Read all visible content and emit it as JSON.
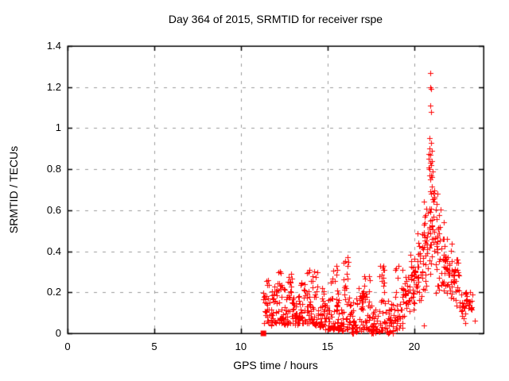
{
  "chart_data": {
    "type": "scatter",
    "title": "Day 364 of 2015, SRMTID for receiver rspe",
    "xlabel": "GPS time / hours",
    "ylabel": "SRMTID / TECUs",
    "xlim": [
      0,
      24
    ],
    "ylim": [
      0,
      1.4
    ],
    "xticks": [
      {
        "v": 0,
        "label": "0"
      },
      {
        "v": 5,
        "label": "5"
      },
      {
        "v": 10,
        "label": "10"
      },
      {
        "v": 15,
        "label": "15"
      },
      {
        "v": 20,
        "label": "20"
      }
    ],
    "yticks": [
      {
        "v": 0,
        "label": "0"
      },
      {
        "v": 0.2,
        "label": "0.2"
      },
      {
        "v": 0.4,
        "label": "0.4"
      },
      {
        "v": 0.6,
        "label": "0.6"
      },
      {
        "v": 0.8,
        "label": "0.8"
      },
      {
        "v": 1,
        "label": "1"
      },
      {
        "v": 1.2,
        "label": "1.2"
      },
      {
        "v": 1.4,
        "label": "1.4"
      }
    ],
    "grid": true,
    "legend": false,
    "marker": "plus",
    "marker_color": "#ff0000",
    "grid_color": "#9b9b9b",
    "axis_color": "#000000",
    "background": "#ffffff",
    "square_point": [
      11.3,
      0.0
    ],
    "notable_points": [
      [
        20.93,
        1.27
      ],
      [
        20.91,
        1.2
      ],
      [
        20.95,
        1.19
      ],
      [
        20.91,
        1.11
      ],
      [
        20.96,
        1.08
      ],
      [
        20.9,
        0.95
      ],
      [
        20.95,
        0.93
      ],
      [
        20.88,
        0.9
      ],
      [
        21.0,
        0.89
      ],
      [
        20.93,
        0.87
      ],
      [
        20.85,
        0.85
      ],
      [
        21.02,
        0.84
      ],
      [
        20.97,
        0.82
      ],
      [
        20.9,
        0.8
      ],
      [
        21.05,
        0.79
      ],
      [
        20.87,
        0.77
      ],
      [
        21.0,
        0.76
      ],
      [
        20.94,
        0.75
      ],
      [
        15.52,
        0.33
      ],
      [
        15.55,
        0.31
      ],
      [
        16.17,
        0.37
      ],
      [
        16.2,
        0.35
      ],
      [
        16.14,
        0.33
      ],
      [
        17.4,
        0.28
      ],
      [
        17.43,
        0.26
      ],
      [
        18.22,
        0.33
      ],
      [
        18.25,
        0.31
      ],
      [
        19.08,
        0.33
      ],
      [
        19.3,
        0.31
      ],
      [
        13.95,
        0.31
      ],
      [
        12.26,
        0.3
      ],
      [
        14.22,
        0.3
      ],
      [
        12.88,
        0.29
      ],
      [
        20.57,
        0.04
      ],
      [
        22.95,
        0.05
      ],
      [
        23.5,
        0.06
      ],
      [
        23.3,
        0.16
      ],
      [
        23.35,
        0.19
      ],
      [
        23.25,
        0.12
      ],
      [
        23.15,
        0.14
      ],
      [
        23.2,
        0.2
      ]
    ],
    "cloud_envelope_comment": "dense scatter cloud read from plot: [t_start,t_end,val_min,val_max,n_points,shape(0=bottom-weighted,1=mid-weighted)]",
    "cloud_envelope": [
      [
        11.3,
        11.45,
        0.05,
        0.2,
        10,
        0
      ],
      [
        11.45,
        11.7,
        0.05,
        0.26,
        18,
        0
      ],
      [
        11.7,
        12.0,
        0.04,
        0.24,
        22,
        0
      ],
      [
        12.0,
        12.35,
        0.05,
        0.3,
        26,
        0
      ],
      [
        12.35,
        12.7,
        0.04,
        0.24,
        24,
        0
      ],
      [
        12.7,
        13.0,
        0.05,
        0.3,
        24,
        0
      ],
      [
        13.0,
        13.4,
        0.04,
        0.22,
        28,
        0
      ],
      [
        13.4,
        13.75,
        0.05,
        0.26,
        26,
        0
      ],
      [
        13.75,
        14.1,
        0.05,
        0.31,
        26,
        0
      ],
      [
        14.1,
        14.45,
        0.04,
        0.3,
        26,
        0
      ],
      [
        14.45,
        14.8,
        0.03,
        0.22,
        24,
        0
      ],
      [
        14.8,
        15.2,
        0.02,
        0.17,
        26,
        0
      ],
      [
        15.2,
        15.55,
        0.02,
        0.33,
        24,
        0
      ],
      [
        15.55,
        15.9,
        0.01,
        0.22,
        24,
        0
      ],
      [
        15.9,
        16.25,
        0.02,
        0.37,
        24,
        0
      ],
      [
        16.25,
        16.7,
        0.0,
        0.2,
        30,
        0
      ],
      [
        16.7,
        17.1,
        0.01,
        0.22,
        28,
        0
      ],
      [
        17.1,
        17.5,
        0.02,
        0.28,
        26,
        0
      ],
      [
        17.5,
        18.0,
        0.0,
        0.15,
        32,
        0
      ],
      [
        18.0,
        18.4,
        0.01,
        0.33,
        28,
        0
      ],
      [
        18.4,
        18.9,
        0.0,
        0.16,
        32,
        0
      ],
      [
        18.9,
        19.35,
        0.02,
        0.33,
        28,
        0
      ],
      [
        19.35,
        19.75,
        0.05,
        0.32,
        26,
        1
      ],
      [
        19.75,
        20.15,
        0.08,
        0.45,
        28,
        1
      ],
      [
        20.15,
        20.5,
        0.1,
        0.52,
        28,
        1
      ],
      [
        20.5,
        20.8,
        0.15,
        0.74,
        30,
        1
      ],
      [
        20.8,
        21.2,
        0.2,
        0.95,
        38,
        1
      ],
      [
        21.2,
        21.55,
        0.18,
        0.7,
        30,
        1
      ],
      [
        21.55,
        21.9,
        0.15,
        0.55,
        26,
        1
      ],
      [
        21.9,
        22.25,
        0.12,
        0.48,
        24,
        1
      ],
      [
        22.25,
        22.6,
        0.1,
        0.4,
        24,
        1
      ],
      [
        22.6,
        23.0,
        0.06,
        0.24,
        20,
        1
      ],
      [
        23.0,
        23.35,
        0.08,
        0.22,
        14,
        1
      ]
    ]
  }
}
